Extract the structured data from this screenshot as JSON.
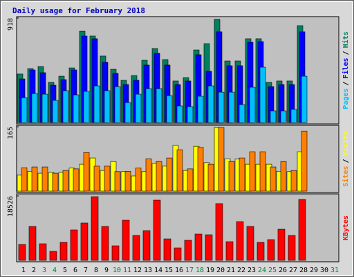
{
  "chart_data": [
    {
      "type": "bar",
      "title": "Daily usage for February 2018",
      "ylim": [
        0,
        918
      ],
      "yticks": [
        918
      ],
      "legend_separator": "/",
      "series": [
        {
          "name": "Hits",
          "color": "#008060",
          "values": [
            426,
            474,
            492,
            353,
            407,
            480,
            802,
            760,
            584,
            468,
            371,
            413,
            547,
            650,
            553,
            365,
            395,
            638,
            693,
            906,
            541,
            541,
            736,
            736,
            353,
            365,
            365,
            851,
            null,
            null,
            null
          ]
        },
        {
          "name": "Files",
          "color": "#0000ff",
          "values": [
            383,
            462,
            438,
            328,
            377,
            462,
            760,
            736,
            529,
            432,
            334,
            371,
            505,
            608,
            505,
            334,
            365,
            596,
            450,
            797,
            499,
            499,
            705,
            711,
            316,
            334,
            334,
            797,
            null,
            null,
            null
          ]
        },
        {
          "name": "Pages",
          "color": "#00c0ff",
          "values": [
            219,
            255,
            249,
            195,
            280,
            243,
            274,
            322,
            280,
            316,
            176,
            249,
            298,
            298,
            237,
            146,
            140,
            231,
            322,
            267,
            267,
            158,
            310,
            486,
            103,
            103,
            116,
            407,
            null,
            null,
            null
          ]
        }
      ]
    },
    {
      "type": "bar",
      "ylim": [
        0,
        165
      ],
      "yticks": [
        165
      ],
      "legend_separator": "/",
      "series": [
        {
          "name": "Visits",
          "color": "#ffff00",
          "values": [
            41,
            51,
            46,
            48,
            48,
            59,
            69,
            85,
            53,
            76,
            50,
            39,
            50,
            71,
            64,
            117,
            53,
            115,
            73,
            163,
            83,
            82,
            69,
            69,
            69,
            51,
            50,
            101,
            null,
            null,
            null
          ]
        },
        {
          "name": "Sites",
          "color": "#ff8000",
          "values": [
            60,
            62,
            62,
            46,
            53,
            57,
            99,
            64,
            64,
            50,
            51,
            59,
            83,
            76,
            85,
            106,
            57,
            112,
            69,
            163,
            76,
            85,
            101,
            101,
            62,
            76,
            53,
            154,
            null,
            null,
            null
          ]
        }
      ]
    },
    {
      "type": "bar",
      "ylim": [
        0,
        18526
      ],
      "yticks": [
        18526
      ],
      "categories": [
        "1",
        "2",
        "3",
        "4",
        "5",
        "6",
        "7",
        "8",
        "9",
        "10",
        "11",
        "12",
        "13",
        "14",
        "15",
        "16",
        "17",
        "18",
        "19",
        "20",
        "21",
        "22",
        "23",
        "24",
        "25",
        "26",
        "27",
        "28",
        "29",
        "30",
        "31"
      ],
      "category_colors": [
        "#000000",
        "#000000",
        "#008040",
        "#008040",
        "#000000",
        "#000000",
        "#000000",
        "#000000",
        "#000000",
        "#008040",
        "#008040",
        "#000000",
        "#000000",
        "#000000",
        "#000000",
        "#000000",
        "#008040",
        "#008040",
        "#000000",
        "#000000",
        "#000000",
        "#000000",
        "#000000",
        "#008040",
        "#008040",
        "#000000",
        "#000000",
        "#000000",
        "#000000",
        "#000000",
        "#008040"
      ],
      "series": [
        {
          "name": "KBytes",
          "color": "#ff0000",
          "values": [
            4582,
            9761,
            4781,
            2590,
            5179,
            8765,
            10757,
            18327,
            9761,
            4183,
            11554,
            7171,
            8566,
            17331,
            6175,
            3586,
            5777,
            7570,
            7371,
            16335,
            5379,
            11155,
            9761,
            5179,
            5976,
            8964,
            7171,
            17530,
            null,
            null,
            null
          ]
        }
      ]
    }
  ]
}
